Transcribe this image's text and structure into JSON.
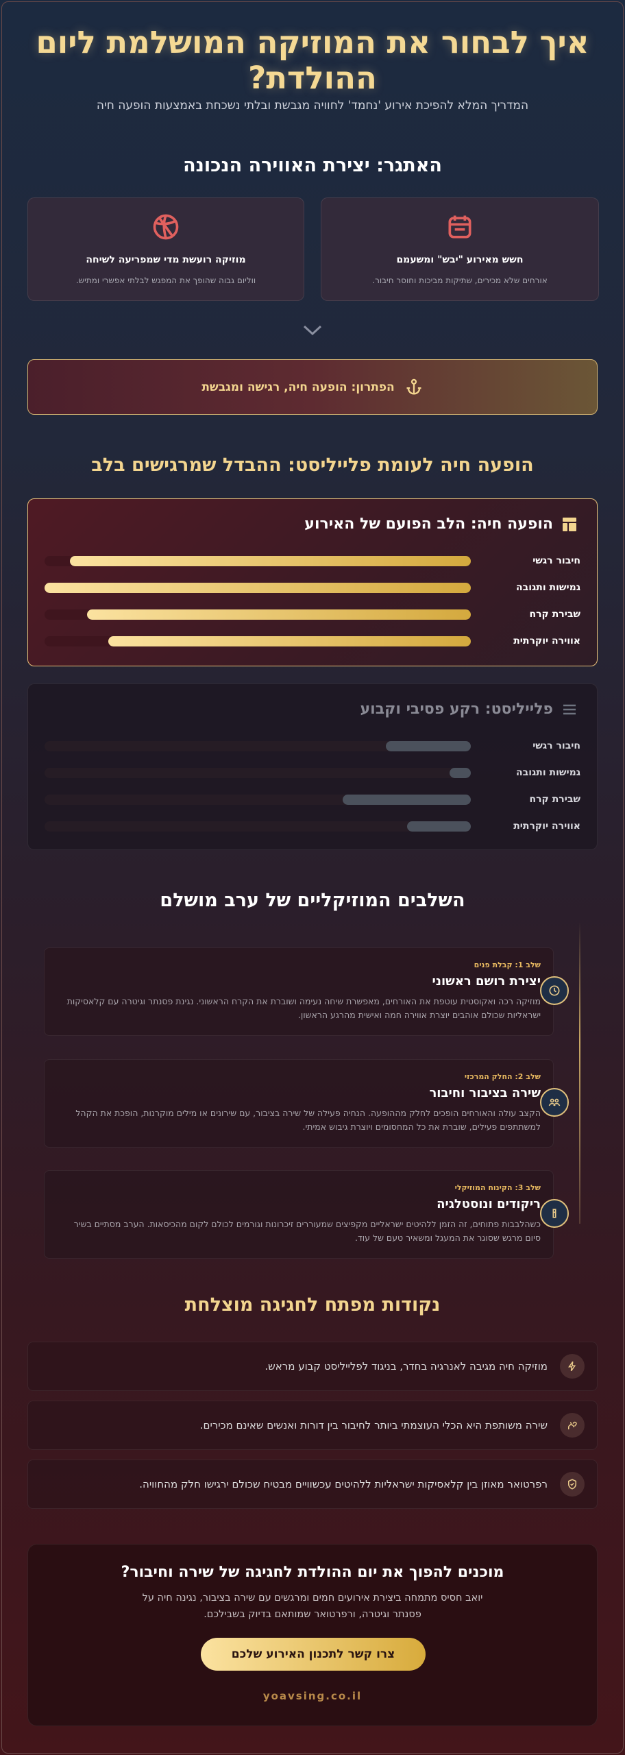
{
  "header": {
    "title": "איך לבחור את המוזיקה המושלמת ליום ההולדת?",
    "subtitle": "המדריך המלא להפיכת אירוע 'נחמד' לחוויה מגבשת ובלתי נשכחת באמצעות הופעה חיה"
  },
  "challenge": {
    "title": "האתגר: יצירת האווירה הנכונה",
    "cards": [
      {
        "title": "חשש מאירוע \"יבש\" ומשעמם",
        "text": "אורחים שלא מכירים, שתיקות מביכות וחוסר חיבור."
      },
      {
        "title": "מוזיקה רועשת מדי שמפריעה לשיחה",
        "text": "ווליום גבוה שהופך את המפגש לבלתי אפשרי ומתיש."
      }
    ]
  },
  "solution": {
    "text": "הפתרון: הופעה חיה, רגישה ומגבשת"
  },
  "comparison": {
    "title": "הופעה חיה לעומת פלייליסט: ההבדל שמרגישים בלב",
    "panels": [
      {
        "title": "הופעה חיה: הלב הפועם של האירוע",
        "rows": [
          {
            "label": "חיבור רגשי",
            "value": 94
          },
          {
            "label": "גמישות ותגובה",
            "value": 100
          },
          {
            "label": "שבירת קרח",
            "value": 90
          },
          {
            "label": "אווירה יוקרתית",
            "value": 85
          }
        ]
      },
      {
        "title": "פלייליסט: רקע פסיבי וקבוע",
        "rows": [
          {
            "label": "חיבור רגשי",
            "value": 20
          },
          {
            "label": "גמישות ותגובה",
            "value": 5
          },
          {
            "label": "שבירת קרח",
            "value": 30
          },
          {
            "label": "אווירה יוקרתית",
            "value": 15
          }
        ]
      }
    ]
  },
  "stages": {
    "title": "השלבים המוזיקליים של ערב מושלם",
    "steps": [
      {
        "label": "שלב 1: קבלת פנים",
        "title": "יצירת רושם ראשוני",
        "text": "מוזיקה רכה ואקוסטית עוטפת את האורחים, מאפשרת שיחה נעימה ושוברת את הקרח הראשוני. נגינת פסנתר וגיטרה עם קלאסיקות ישראליות שכולם אוהבים יוצרת אווירה חמה ואישית מהרגע הראשון."
      },
      {
        "label": "שלב 2: החלק המרכזי",
        "title": "שירה בציבור וחיבור",
        "text": "הקצב עולה והאורחים הופכים לחלק מההופעה. הנחיה פעילה של שירה בציבור, עם שירונים או מילים מוקרנות, הופכת את הקהל למשתתפים פעילים, שוברת את כל המחסומים ויוצרת גיבוש אמיתי."
      },
      {
        "label": "שלב 3: הקינוח המוזיקלי",
        "title": "ריקודים ונוסטלגיה",
        "text": "כשהלבבות פתוחים, זה הזמן ללהיטים ישראליים מקפיצים שמעוררים זיכרונות וגורמים לכולם לקום מהכיסאות. הערב מסתיים בשיר סיום מרגש שסוגר את המעגל ומשאיר טעם של עוד."
      }
    ]
  },
  "key_points": {
    "title": "נקודות מפתח לחגיגה מוצלחת",
    "items": [
      "מוזיקה חיה מגיבה לאנרגיה בחדר, בניגוד לפלייליסט קבוע מראש.",
      "שירה משותפת היא הכלי העוצמתי ביותר לחיבור בין דורות ואנשים שאינם מכירים.",
      "רפרטואר מאוזן בין קלאסיקות ישראליות ללהיטים עכשוויים מבטיח שכולם ירגישו חלק מהחוויה."
    ]
  },
  "cta": {
    "title": "מוכנים להפוך את יום ההולדת לחגיגה של שירה וחיבור?",
    "text": "יואב חסיס מתמחה ביצירת אירועים חמים ומרגשים עם שירה בציבור, נגינה חיה על פסנתר וגיטרה, ורפרטואר שמותאם בדיוק בשבילכם.",
    "button": "צרו קשר לתכנון האירוע שלכם",
    "site": "yoavsing.co.il"
  }
}
